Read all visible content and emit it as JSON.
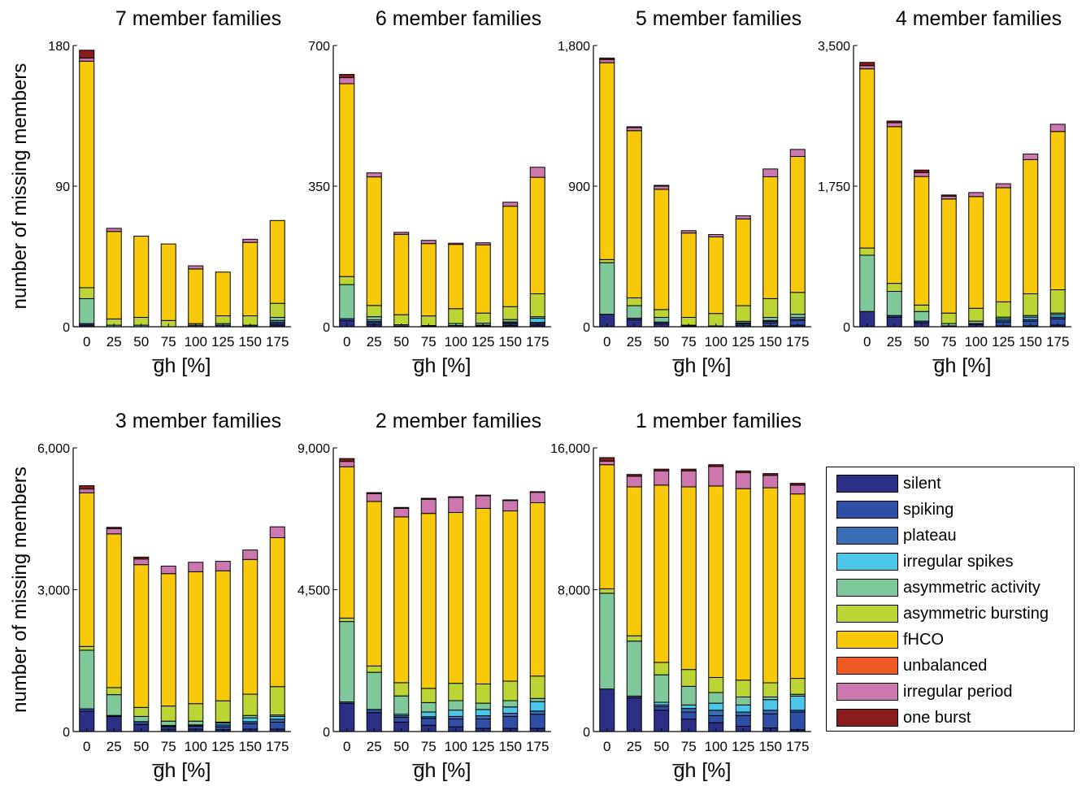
{
  "chart_data": [
    {
      "type": "bar",
      "title": "7 member families",
      "ylabel": "number of missing members",
      "xlabel": "g̅h [%]",
      "ylim": [
        0,
        180
      ],
      "yticks": [
        "0",
        "90",
        "180"
      ],
      "categories": [
        "0",
        "25",
        "50",
        "75",
        "100",
        "125",
        "150",
        "175"
      ],
      "series": [
        {
          "name": "silent",
          "values": [
            1,
            0,
            0,
            0,
            0,
            0,
            0,
            1
          ]
        },
        {
          "name": "spiking",
          "values": [
            1,
            0,
            0,
            0,
            1,
            1,
            1,
            1
          ]
        },
        {
          "name": "plateau",
          "values": [
            0,
            0,
            0,
            0,
            0,
            0,
            0,
            1
          ]
        },
        {
          "name": "irregular spikes",
          "values": [
            0,
            0,
            0,
            0,
            0,
            0,
            0,
            1
          ]
        },
        {
          "name": "asymmetric activity",
          "values": [
            16,
            1,
            1,
            0,
            0,
            1,
            0,
            2
          ]
        },
        {
          "name": "asymmetric bursting",
          "values": [
            7,
            4,
            5,
            4,
            1,
            5,
            6,
            9
          ]
        },
        {
          "name": "fHCO",
          "values": [
            145,
            56,
            52,
            49,
            35,
            28,
            47,
            53
          ]
        },
        {
          "name": "unbalanced",
          "values": [
            0,
            0,
            0,
            0,
            0,
            0,
            0,
            0
          ]
        },
        {
          "name": "irregular period",
          "values": [
            2,
            2,
            0,
            0,
            2,
            0,
            2,
            0
          ]
        },
        {
          "name": "one burst",
          "values": [
            5,
            0,
            0,
            0,
            0,
            0,
            0,
            0
          ]
        }
      ]
    },
    {
      "type": "bar",
      "title": "6 member families",
      "xlabel": "g̅h [%]",
      "ylim": [
        0,
        700
      ],
      "yticks": [
        "0",
        "350",
        "700"
      ],
      "categories": [
        "0",
        "25",
        "50",
        "75",
        "100",
        "125",
        "150",
        "175"
      ],
      "series": [
        {
          "name": "silent",
          "values": [
            15,
            5,
            0,
            0,
            0,
            0,
            3,
            4
          ]
        },
        {
          "name": "spiking",
          "values": [
            5,
            5,
            2,
            1,
            3,
            2,
            4,
            4
          ]
        },
        {
          "name": "plateau",
          "values": [
            0,
            3,
            0,
            0,
            0,
            0,
            3,
            3
          ]
        },
        {
          "name": "irregular spikes",
          "values": [
            0,
            4,
            0,
            0,
            0,
            2,
            2,
            10
          ]
        },
        {
          "name": "asymmetric activity",
          "values": [
            85,
            8,
            3,
            2,
            5,
            5,
            6,
            4
          ]
        },
        {
          "name": "asymmetric bursting",
          "values": [
            20,
            28,
            25,
            24,
            37,
            25,
            32,
            57
          ]
        },
        {
          "name": "fHCO",
          "values": [
            480,
            320,
            200,
            180,
            160,
            170,
            250,
            290
          ]
        },
        {
          "name": "unbalanced",
          "values": [
            0,
            0,
            0,
            0,
            0,
            0,
            0,
            0
          ]
        },
        {
          "name": "irregular period",
          "values": [
            15,
            10,
            5,
            8,
            3,
            5,
            10,
            25
          ]
        },
        {
          "name": "one burst",
          "values": [
            8,
            0,
            0,
            0,
            0,
            0,
            0,
            0
          ]
        }
      ]
    },
    {
      "type": "bar",
      "title": "5 member families",
      "xlabel": "g̅h [%]",
      "ylim": [
        0,
        1800
      ],
      "yticks": [
        "0",
        "900",
        "1,800"
      ],
      "categories": [
        "0",
        "25",
        "50",
        "75",
        "100",
        "125",
        "150",
        "175"
      ],
      "series": [
        {
          "name": "silent",
          "values": [
            80,
            45,
            20,
            0,
            0,
            0,
            5,
            10
          ]
        },
        {
          "name": "spiking",
          "values": [
            0,
            10,
            10,
            5,
            5,
            10,
            20,
            30
          ]
        },
        {
          "name": "plateau",
          "values": [
            0,
            0,
            0,
            0,
            0,
            10,
            10,
            10
          ]
        },
        {
          "name": "irregular spikes",
          "values": [
            0,
            0,
            0,
            0,
            0,
            5,
            5,
            10
          ]
        },
        {
          "name": "asymmetric activity",
          "values": [
            330,
            80,
            30,
            5,
            0,
            10,
            20,
            20
          ]
        },
        {
          "name": "asymmetric bursting",
          "values": [
            20,
            50,
            50,
            50,
            80,
            100,
            120,
            140
          ]
        },
        {
          "name": "fHCO",
          "values": [
            1260,
            1070,
            770,
            540,
            490,
            555,
            780,
            870
          ]
        },
        {
          "name": "unbalanced",
          "values": [
            0,
            0,
            0,
            0,
            0,
            0,
            0,
            0
          ]
        },
        {
          "name": "irregular period",
          "values": [
            20,
            20,
            20,
            15,
            15,
            20,
            50,
            45
          ]
        },
        {
          "name": "one burst",
          "values": [
            10,
            5,
            5,
            0,
            0,
            0,
            0,
            0
          ]
        }
      ]
    },
    {
      "type": "bar",
      "title": "4 member families",
      "xlabel": "g̅h [%]",
      "ylim": [
        0,
        3500
      ],
      "yticks": [
        "0",
        "1,750",
        "3,500"
      ],
      "categories": [
        "0",
        "25",
        "50",
        "75",
        "100",
        "125",
        "150",
        "175"
      ],
      "series": [
        {
          "name": "silent",
          "values": [
            190,
            120,
            50,
            0,
            30,
            10,
            10,
            20
          ]
        },
        {
          "name": "spiking",
          "values": [
            0,
            20,
            20,
            10,
            10,
            50,
            60,
            80
          ]
        },
        {
          "name": "plateau",
          "values": [
            0,
            0,
            0,
            0,
            0,
            20,
            20,
            20
          ]
        },
        {
          "name": "irregular spikes",
          "values": [
            0,
            0,
            0,
            0,
            0,
            20,
            30,
            30
          ]
        },
        {
          "name": "asymmetric activity",
          "values": [
            700,
            300,
            120,
            30,
            30,
            20,
            20,
            20
          ]
        },
        {
          "name": "asymmetric bursting",
          "values": [
            90,
            100,
            80,
            130,
            160,
            190,
            270,
            290
          ]
        },
        {
          "name": "fHCO",
          "values": [
            2230,
            1950,
            1600,
            1420,
            1390,
            1420,
            1670,
            1970
          ]
        },
        {
          "name": "unbalanced",
          "values": [
            0,
            0,
            0,
            0,
            0,
            0,
            0,
            0
          ]
        },
        {
          "name": "irregular period",
          "values": [
            40,
            50,
            50,
            35,
            50,
            50,
            70,
            90
          ]
        },
        {
          "name": "one burst",
          "values": [
            40,
            20,
            30,
            15,
            0,
            0,
            0,
            0
          ]
        }
      ]
    },
    {
      "type": "bar",
      "title": "3 member families",
      "ylabel": "number of missing members",
      "xlabel": "g̅h [%]",
      "ylim": [
        0,
        6000
      ],
      "yticks": [
        "0",
        "3,000",
        "6,000"
      ],
      "categories": [
        "0",
        "25",
        "50",
        "75",
        "100",
        "125",
        "150",
        "175"
      ],
      "series": [
        {
          "name": "silent",
          "values": [
            430,
            320,
            150,
            50,
            50,
            40,
            50,
            50
          ]
        },
        {
          "name": "spiking",
          "values": [
            50,
            20,
            60,
            50,
            60,
            60,
            120,
            150
          ]
        },
        {
          "name": "plateau",
          "values": [
            0,
            0,
            0,
            20,
            20,
            40,
            40,
            60
          ]
        },
        {
          "name": "irregular spikes",
          "values": [
            0,
            0,
            0,
            10,
            10,
            40,
            80,
            60
          ]
        },
        {
          "name": "asymmetric activity",
          "values": [
            1240,
            440,
            110,
            90,
            80,
            20,
            50,
            30
          ]
        },
        {
          "name": "asymmetric bursting",
          "values": [
            80,
            150,
            190,
            320,
            370,
            450,
            450,
            600
          ]
        },
        {
          "name": "fHCO",
          "values": [
            3250,
            3250,
            3020,
            2800,
            2790,
            2750,
            2850,
            3150
          ]
        },
        {
          "name": "unbalanced",
          "values": [
            0,
            0,
            0,
            0,
            0,
            0,
            0,
            0
          ]
        },
        {
          "name": "irregular period",
          "values": [
            80,
            110,
            120,
            160,
            200,
            200,
            200,
            230
          ]
        },
        {
          "name": "one burst",
          "values": [
            70,
            30,
            40,
            0,
            0,
            0,
            0,
            0
          ]
        }
      ]
    },
    {
      "type": "bar",
      "title": "2 member families",
      "xlabel": "g̅h [%]",
      "ylim": [
        0,
        9000
      ],
      "yticks": [
        "0",
        "4,500",
        "9,000"
      ],
      "categories": [
        "0",
        "25",
        "50",
        "75",
        "100",
        "125",
        "150",
        "175"
      ],
      "series": [
        {
          "name": "silent",
          "values": [
            890,
            600,
            300,
            200,
            150,
            100,
            100,
            100
          ]
        },
        {
          "name": "spiking",
          "values": [
            50,
            100,
            150,
            220,
            250,
            300,
            380,
            450
          ]
        },
        {
          "name": "plateau",
          "values": [
            0,
            0,
            50,
            50,
            80,
            100,
            100,
            100
          ]
        },
        {
          "name": "irregular spikes",
          "values": [
            0,
            0,
            50,
            150,
            200,
            200,
            200,
            300
          ]
        },
        {
          "name": "asymmetric activity",
          "values": [
            2550,
            1180,
            580,
            300,
            300,
            200,
            200,
            100
          ]
        },
        {
          "name": "asymmetric bursting",
          "values": [
            110,
            200,
            420,
            450,
            550,
            610,
            620,
            710
          ]
        },
        {
          "name": "fHCO",
          "values": [
            4800,
            5220,
            5260,
            5550,
            5420,
            5570,
            5400,
            5500
          ]
        },
        {
          "name": "unbalanced",
          "values": [
            0,
            0,
            0,
            0,
            0,
            0,
            0,
            0
          ]
        },
        {
          "name": "irregular period",
          "values": [
            170,
            250,
            270,
            450,
            480,
            400,
            330,
            330
          ]
        },
        {
          "name": "one burst",
          "values": [
            90,
            30,
            30,
            30,
            20,
            20,
            20,
            20
          ]
        }
      ]
    },
    {
      "type": "bar",
      "title": "1 member families",
      "xlabel": "g̅h [%]",
      "ylim": [
        0,
        16000
      ],
      "yticks": [
        "0",
        "8,000",
        "16,000"
      ],
      "categories": [
        "0",
        "25",
        "50",
        "75",
        "100",
        "125",
        "150",
        "175"
      ],
      "series": [
        {
          "name": "silent",
          "values": [
            2400,
            1900,
            1200,
            700,
            500,
            300,
            200,
            100
          ]
        },
        {
          "name": "spiking",
          "values": [
            0,
            100,
            200,
            400,
            400,
            600,
            800,
            1000
          ]
        },
        {
          "name": "plateau",
          "values": [
            0,
            0,
            100,
            200,
            300,
            200,
            200,
            100
          ]
        },
        {
          "name": "irregular spikes",
          "values": [
            0,
            0,
            150,
            200,
            400,
            400,
            600,
            800
          ]
        },
        {
          "name": "asymmetric activity",
          "values": [
            5400,
            3100,
            1550,
            1050,
            600,
            450,
            150,
            100
          ]
        },
        {
          "name": "asymmetric bursting",
          "values": [
            250,
            300,
            700,
            950,
            850,
            950,
            800,
            900
          ]
        },
        {
          "name": "fHCO",
          "values": [
            7000,
            8400,
            10000,
            10300,
            10800,
            10800,
            11000,
            10400
          ]
        },
        {
          "name": "unbalanced",
          "values": [
            0,
            0,
            0,
            0,
            0,
            0,
            0,
            0
          ]
        },
        {
          "name": "irregular period",
          "values": [
            200,
            600,
            800,
            900,
            1100,
            900,
            700,
            500
          ]
        },
        {
          "name": "one burst",
          "values": [
            200,
            100,
            100,
            100,
            100,
            100,
            100,
            100
          ]
        }
      ]
    }
  ],
  "legend": {
    "items": [
      {
        "label": "silent",
        "color": "#2b2f86"
      },
      {
        "label": "spiking",
        "color": "#2f4ea6"
      },
      {
        "label": "plateau",
        "color": "#3a6fb8"
      },
      {
        "label": "irregular spikes",
        "color": "#4cc6e8"
      },
      {
        "label": "asymmetric activity",
        "color": "#7fc89a"
      },
      {
        "label": "asymmetric bursting",
        "color": "#bcd535"
      },
      {
        "label": "fHCO",
        "color": "#f8c908"
      },
      {
        "label": "unbalanced",
        "color": "#ef5a24"
      },
      {
        "label": "irregular period",
        "color": "#cc78ae"
      },
      {
        "label": "one burst",
        "color": "#8b1a1a"
      }
    ]
  }
}
